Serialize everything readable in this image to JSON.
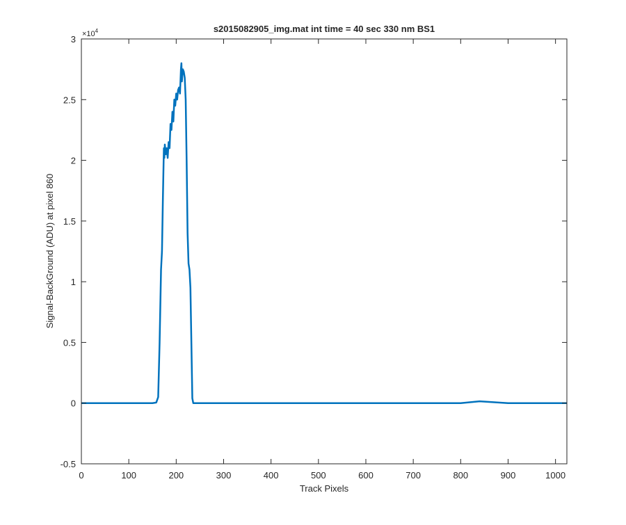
{
  "chart_data": {
    "type": "line",
    "title": "s2015082905_img.mat int time = 40 sec  330 nm BS1",
    "xlabel": "Track Pixels",
    "ylabel": "Signal-BackGround (ADU) at pixel 860",
    "xlim": [
      0,
      1024
    ],
    "ylim": [
      -5000,
      30000
    ],
    "y_exponent_label": "×10",
    "y_exponent_power": "4",
    "x_ticks": [
      0,
      100,
      200,
      300,
      400,
      500,
      600,
      700,
      800,
      900,
      1000
    ],
    "x_tick_labels": [
      "0",
      "100",
      "200",
      "300",
      "400",
      "500",
      "600",
      "700",
      "800",
      "900",
      "1000"
    ],
    "y_ticks": [
      -5000,
      0,
      5000,
      10000,
      15000,
      20000,
      25000,
      30000
    ],
    "y_tick_labels": [
      "-0.5",
      "0",
      "0.5",
      "1",
      "1.5",
      "2",
      "2.5",
      "3"
    ],
    "grid": false,
    "line_color": "#0072BD",
    "series": [
      {
        "x": [
          0,
          50,
          100,
          150,
          158,
          162,
          165,
          168,
          170,
          172,
          174,
          175,
          176,
          178,
          180,
          182,
          184,
          186,
          188,
          190,
          192,
          194,
          196,
          198,
          200,
          202,
          204,
          206,
          208,
          210,
          211,
          212,
          214,
          216,
          218,
          220,
          222,
          224,
          226,
          228,
          230,
          232,
          234,
          236,
          240,
          300,
          400,
          500,
          600,
          700,
          800,
          840,
          900,
          1000,
          1024
        ],
        "y": [
          0,
          0,
          0,
          0,
          50,
          500,
          5000,
          11000,
          12500,
          17000,
          21000,
          20200,
          21300,
          20500,
          21000,
          20200,
          21500,
          21000,
          23000,
          22500,
          24000,
          23200,
          25000,
          24500,
          25500,
          25000,
          25800,
          26000,
          25500,
          27500,
          28000,
          26500,
          27500,
          27300,
          26800,
          25000,
          20000,
          14000,
          11500,
          11000,
          9500,
          5000,
          400,
          0,
          0,
          0,
          0,
          0,
          0,
          0,
          0,
          150,
          0,
          0,
          0
        ]
      }
    ]
  }
}
